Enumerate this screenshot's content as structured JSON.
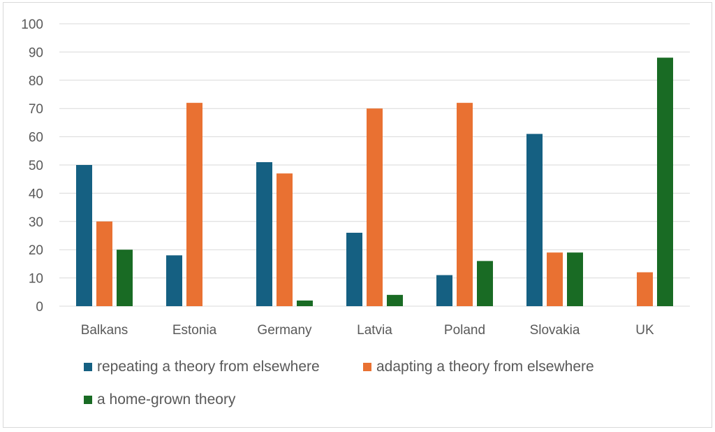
{
  "chart_data": {
    "type": "bar",
    "title": "",
    "xlabel": "",
    "ylabel": "",
    "categories": [
      "Balkans",
      "Estonia",
      "Germany",
      "Latvia",
      "Poland",
      "Slovakia",
      "UK"
    ],
    "ylim": [
      0,
      100
    ],
    "yticks": [
      0,
      10,
      20,
      30,
      40,
      50,
      60,
      70,
      80,
      90,
      100
    ],
    "grid": true,
    "legend_position": "bottom",
    "series": [
      {
        "name": "repeating a theory from elsewhere",
        "color": "#156082",
        "values": [
          50,
          18,
          51,
          26,
          11,
          61,
          0
        ]
      },
      {
        "name": "adapting a theory from elsewhere",
        "color": "#E97132",
        "values": [
          30,
          72,
          47,
          70,
          72,
          19,
          12
        ]
      },
      {
        "name": "a home-grown theory",
        "color": "#196B24",
        "values": [
          20,
          0,
          2,
          4,
          16,
          19,
          88
        ]
      }
    ]
  }
}
